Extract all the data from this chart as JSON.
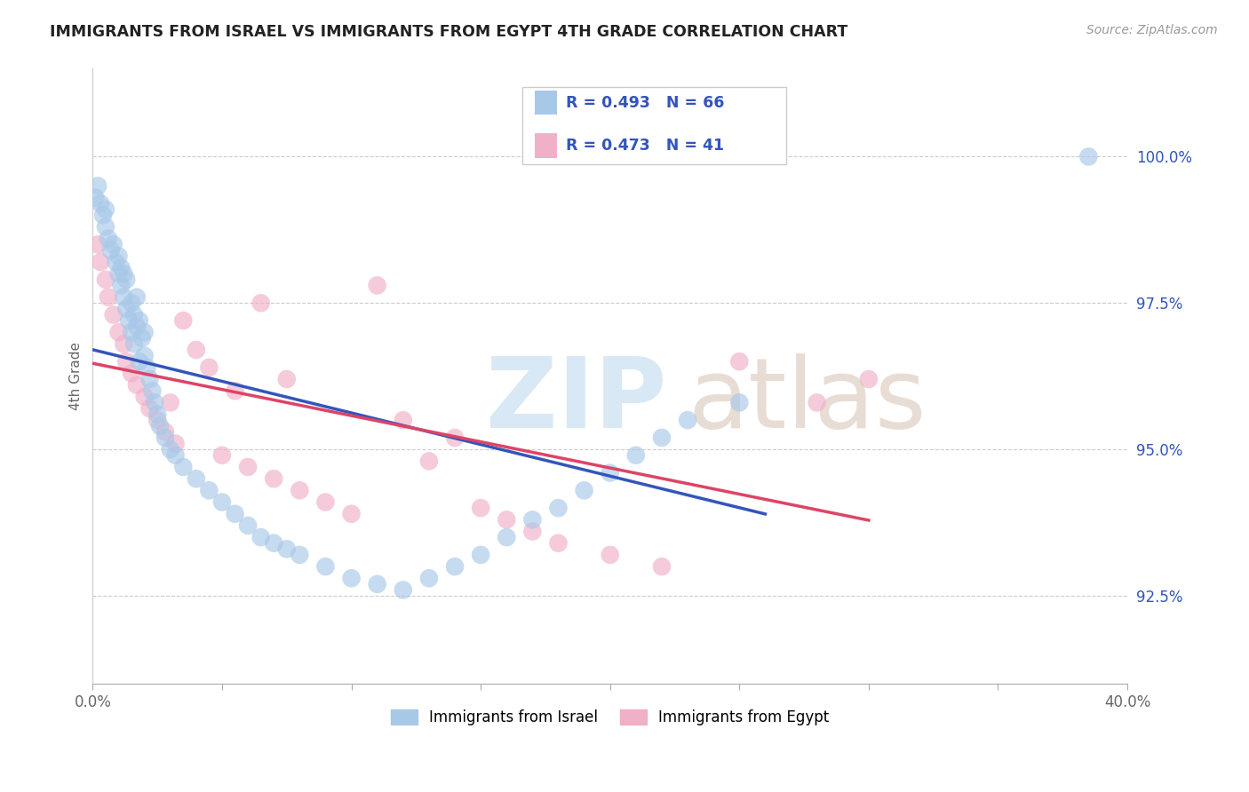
{
  "title": "IMMIGRANTS FROM ISRAEL VS IMMIGRANTS FROM EGYPT 4TH GRADE CORRELATION CHART",
  "source_text": "Source: ZipAtlas.com",
  "ylabel": "4th Grade",
  "xlim": [
    0.0,
    40.0
  ],
  "ylim": [
    91.0,
    101.5
  ],
  "xtick_positions": [
    0.0,
    5.0,
    10.0,
    15.0,
    20.0,
    25.0,
    30.0,
    35.0,
    40.0
  ],
  "xtick_labels": [
    "0.0%",
    "",
    "",
    "",
    "",
    "",
    "",
    "",
    "40.0%"
  ],
  "ytick_labels": [
    "92.5%",
    "95.0%",
    "97.5%",
    "100.0%"
  ],
  "ytick_values": [
    92.5,
    95.0,
    97.5,
    100.0
  ],
  "legend_label_israel": "Immigrants from Israel",
  "legend_label_egypt": "Immigrants from Egypt",
  "color_israel": "#a8c8e8",
  "color_egypt": "#f0b0c8",
  "line_color_israel": "#3355bb",
  "line_color_egypt": "#dd4466",
  "R_israel": 0.493,
  "N_israel": 66,
  "R_egypt": 0.473,
  "N_egypt": 41,
  "text_color_blue": "#3355bb",
  "israel_x": [
    0.1,
    0.2,
    0.3,
    0.4,
    0.5,
    0.5,
    0.6,
    0.7,
    0.8,
    0.9,
    1.0,
    1.0,
    1.1,
    1.1,
    1.2,
    1.2,
    1.3,
    1.3,
    1.4,
    1.5,
    1.5,
    1.6,
    1.6,
    1.7,
    1.7,
    1.8,
    1.8,
    1.9,
    2.0,
    2.0,
    2.1,
    2.2,
    2.3,
    2.4,
    2.5,
    2.6,
    2.8,
    3.0,
    3.2,
    3.5,
    4.0,
    4.5,
    5.0,
    5.5,
    6.0,
    6.5,
    7.0,
    7.5,
    8.0,
    9.0,
    10.0,
    11.0,
    12.0,
    13.0,
    14.0,
    15.0,
    16.0,
    17.0,
    18.0,
    19.0,
    20.0,
    21.0,
    22.0,
    23.0,
    25.0,
    38.5
  ],
  "israel_y": [
    99.3,
    99.5,
    99.2,
    99.0,
    98.8,
    99.1,
    98.6,
    98.4,
    98.5,
    98.2,
    98.0,
    98.3,
    97.8,
    98.1,
    97.6,
    98.0,
    97.4,
    97.9,
    97.2,
    97.0,
    97.5,
    96.8,
    97.3,
    97.1,
    97.6,
    96.5,
    97.2,
    96.9,
    96.6,
    97.0,
    96.4,
    96.2,
    96.0,
    95.8,
    95.6,
    95.4,
    95.2,
    95.0,
    94.9,
    94.7,
    94.5,
    94.3,
    94.1,
    93.9,
    93.7,
    93.5,
    93.4,
    93.3,
    93.2,
    93.0,
    92.8,
    92.7,
    92.6,
    92.8,
    93.0,
    93.2,
    93.5,
    93.8,
    94.0,
    94.3,
    94.6,
    94.9,
    95.2,
    95.5,
    95.8,
    100.0
  ],
  "egypt_x": [
    0.2,
    0.3,
    0.5,
    0.6,
    0.8,
    1.0,
    1.2,
    1.3,
    1.5,
    1.7,
    2.0,
    2.2,
    2.5,
    2.8,
    3.0,
    3.2,
    3.5,
    4.0,
    4.5,
    5.0,
    5.5,
    6.0,
    6.5,
    7.0,
    7.5,
    8.0,
    9.0,
    10.0,
    11.0,
    12.0,
    13.0,
    14.0,
    15.0,
    16.0,
    17.0,
    18.0,
    20.0,
    22.0,
    25.0,
    28.0,
    30.0
  ],
  "egypt_y": [
    98.5,
    98.2,
    97.9,
    97.6,
    97.3,
    97.0,
    96.8,
    96.5,
    96.3,
    96.1,
    95.9,
    95.7,
    95.5,
    95.3,
    95.8,
    95.1,
    97.2,
    96.7,
    96.4,
    94.9,
    96.0,
    94.7,
    97.5,
    94.5,
    96.2,
    94.3,
    94.1,
    93.9,
    97.8,
    95.5,
    94.8,
    95.2,
    94.0,
    93.8,
    93.6,
    93.4,
    93.2,
    93.0,
    96.5,
    95.8,
    96.2
  ]
}
